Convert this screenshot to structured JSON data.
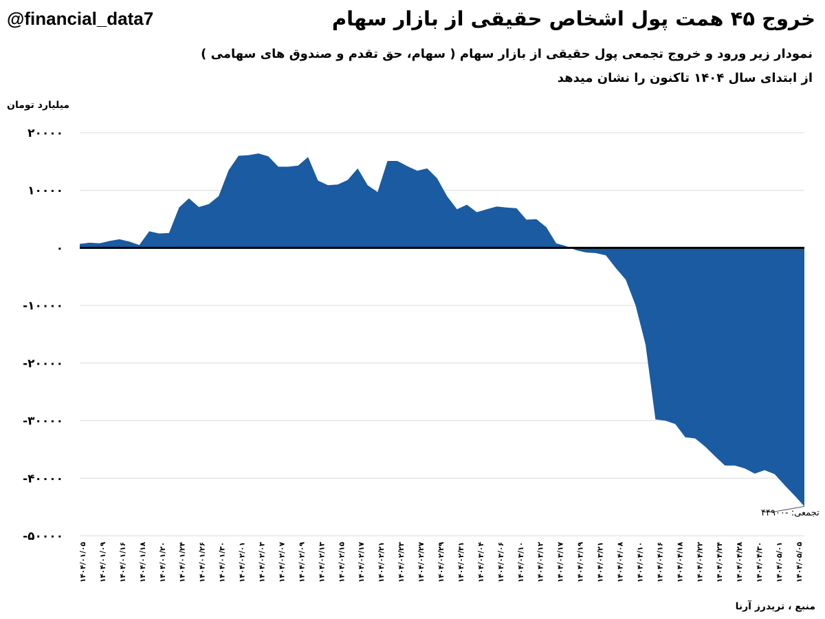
{
  "header": {
    "handle": "@financial_data7",
    "title": "خروج ۴۵ همت پول اشخاص حقیقی از بازار سهام",
    "subtitle_line1": "نمودار زیر ورود و خروج تجمعی پول حقیقی از بازار سهام ( سهام، حق تقدم و صندوق های سهامی )",
    "subtitle_line2": "از ابتدای سال ۱۴۰۴ تاکنون را نشان میدهد"
  },
  "footer": {
    "source": "منبع ، تریدرز آرنا"
  },
  "chart_data": {
    "type": "area",
    "ylabel": "میلیارد تومان",
    "ylim": [
      -50000,
      20000
    ],
    "yticks": [
      20000,
      10000,
      0,
      -10000,
      -20000,
      -30000,
      -40000,
      -50000
    ],
    "ytick_labels": [
      "۲۰۰۰۰",
      "۱۰۰۰۰",
      "۰",
      "-۱۰۰۰۰",
      "-۲۰۰۰۰",
      "-۳۰۰۰۰",
      "-۴۰۰۰۰",
      "-۵۰۰۰۰"
    ],
    "grid": true,
    "colors": {
      "area": "#1a5ba1",
      "zero_line": "#000000",
      "grid": "#d9d9d9"
    },
    "xtick_labels": [
      "۱۴۰۴/۰۱/۰۵",
      "۱۴۰۴/۰۱/۰۹",
      "۱۴۰۴/۰۱/۱۶",
      "۱۴۰۴/۰۱/۱۸",
      "۱۴۰۴/۰۱/۲۰",
      "۱۴۰۴/۰۱/۲۴",
      "۱۴۰۴/۰۱/۲۶",
      "۱۴۰۴/۰۱/۳۰",
      "۱۴۰۴/۰۲/۰۱",
      "۱۴۰۴/۰۲/۰۳",
      "۱۴۰۴/۰۲/۰۷",
      "۱۴۰۴/۰۲/۰۹",
      "۱۴۰۴/۰۲/۱۳",
      "۱۴۰۴/۰۲/۱۵",
      "۱۴۰۴/۰۲/۱۷",
      "۱۴۰۴/۰۲/۲۱",
      "۱۴۰۴/۰۲/۲۳",
      "۱۴۰۴/۰۲/۲۷",
      "۱۴۰۴/۰۲/۲۹",
      "۱۴۰۴/۰۲/۳۱",
      "۱۴۰۴/۰۳/۰۴",
      "۱۴۰۴/۰۳/۰۶",
      "۱۴۰۴/۰۳/۱۰",
      "۱۴۰۴/۰۳/۱۲",
      "۱۴۰۴/۰۳/۱۷",
      "۱۴۰۴/۰۳/۱۹",
      "۱۴۰۴/۰۳/۲۱",
      "۱۴۰۴/۰۴/۰۸",
      "۱۴۰۴/۰۴/۱۰",
      "۱۴۰۴/۰۴/۱۶",
      "۱۴۰۴/۰۴/۱۸",
      "۱۴۰۴/۰۴/۲۲",
      "۱۴۰۴/۰۴/۲۴",
      "۱۴۰۴/۰۴/۲۸",
      "۱۴۰۴/۰۴/۳۰",
      "۱۴۰۴/۰۵/۰۱",
      "۱۴۰۴/۰۵/۰۵"
    ],
    "values": [
      700,
      900,
      800,
      1200,
      1500,
      1100,
      500,
      2900,
      2500,
      2600,
      7000,
      8600,
      7100,
      7600,
      9000,
      13500,
      16000,
      16100,
      16400,
      15900,
      14100,
      14100,
      14300,
      15800,
      11700,
      10900,
      11000,
      11800,
      13800,
      10900,
      9700,
      15100,
      15100,
      14200,
      13400,
      13800,
      12100,
      9000,
      6700,
      7500,
      6200,
      6700,
      7200,
      7000,
      6900,
      4900,
      5000,
      3600,
      800,
      300,
      -400,
      -800,
      -900,
      -1300,
      -3500,
      -5500,
      -10000,
      -16800,
      -29800,
      -30000,
      -30600,
      -32900,
      -33100,
      -34500,
      -36200,
      -37800,
      -37800,
      -38300,
      -39200,
      -38600,
      -39300,
      -41200,
      -43000,
      -44900
    ],
    "annotation": "تجمعی: -۴۴۹۰۰",
    "annotation_value": -44900
  }
}
